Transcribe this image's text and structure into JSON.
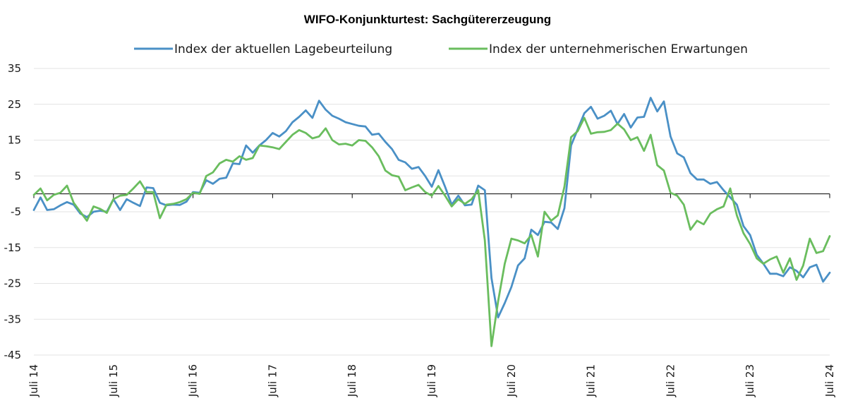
{
  "chart_data": {
    "type": "line",
    "title": "WIFO-Konjunkturtest: Sachgütererzeugung",
    "xlabel": "",
    "ylabel": "",
    "ylim": [
      -45,
      35
    ],
    "yticks": [
      35,
      25,
      15,
      5,
      -5,
      -15,
      -25,
      -35,
      -45
    ],
    "xticks": [
      "Juli 14",
      "Juli 15",
      "Juli 16",
      "Juli 17",
      "Juli 18",
      "Juli 19",
      "Juli 20",
      "Juli 21",
      "Juli 22",
      "Juli 23",
      "Juli 24"
    ],
    "x_range": [
      "2014-07",
      "2024-07"
    ],
    "frequency": "monthly",
    "grid": true,
    "legend_position": "top",
    "series": [
      {
        "name": "Index der aktuellen Lagebeurteilung",
        "color": "#4a90c6",
        "values": [
          -4.5,
          -1,
          -4.5,
          -4.3,
          -3.2,
          -2.3,
          -3.0,
          -5.5,
          -6.5,
          -5.0,
          -4.7,
          -5.0,
          -1.5,
          -4.5,
          -1.5,
          -2.5,
          -3.4,
          1.8,
          1.6,
          -2.5,
          -3.2,
          -3.0,
          -3.1,
          -2.2,
          0.5,
          0.3,
          3.8,
          2.8,
          4.2,
          4.5,
          8.5,
          8.3,
          13.5,
          11.5,
          13.5,
          15.0,
          17.0,
          16.0,
          17.5,
          20.0,
          21.5,
          23.3,
          21.2,
          26.0,
          23.5,
          21.8,
          21.0,
          20.0,
          19.5,
          19.0,
          18.8,
          16.5,
          16.8,
          14.5,
          12.5,
          9.5,
          8.8,
          7.0,
          7.5,
          5.0,
          2.0,
          6.6,
          2.0,
          -3.0,
          -0.5,
          -3.2,
          -3.0,
          2.3,
          1.0,
          -23.5,
          -34.5,
          -30.5,
          -26.0,
          -20.0,
          -18.0,
          -10.0,
          -11.5,
          -7.8,
          -8.0,
          -9.8,
          -4.0,
          13.5,
          18.0,
          22.5,
          24.3,
          21.0,
          21.8,
          23.2,
          19.5,
          22.3,
          18.5,
          21.3,
          21.5,
          26.8,
          23.0,
          25.8,
          16.0,
          11.3,
          10.2,
          5.8,
          4.0,
          4.0,
          2.8,
          3.3,
          1.0,
          -1.0,
          -3.0,
          -9.0,
          -11.5,
          -17.0,
          -19.5,
          -22.3,
          -22.3,
          -23.0,
          -20.5,
          -21.5,
          -23.3,
          -20.5,
          -19.8,
          -24.5,
          -22.0
        ]
      },
      {
        "name": "Index der unternehmerischen Erwartungen",
        "color": "#6abd5e",
        "values": [
          -0.3,
          1.5,
          -1.8,
          -0.3,
          0.3,
          2.3,
          -2.5,
          -5.0,
          -7.5,
          -3.5,
          -4.2,
          -5.3,
          -1.5,
          -0.5,
          -0.3,
          1.5,
          3.5,
          0.5,
          0.5,
          -6.8,
          -3.0,
          -2.8,
          -2.3,
          -1.5,
          0.3,
          0.0,
          5.0,
          6.0,
          8.5,
          9.5,
          9.0,
          10.5,
          9.5,
          10.0,
          13.5,
          13.3,
          13.0,
          12.5,
          14.5,
          16.5,
          17.8,
          17.0,
          15.5,
          16.0,
          18.3,
          15.0,
          13.8,
          14.0,
          13.5,
          15.0,
          14.8,
          13.0,
          10.5,
          6.5,
          5.2,
          4.8,
          1.0,
          1.8,
          2.5,
          0.5,
          -0.5,
          2.2,
          -0.5,
          -3.5,
          -1.5,
          -2.8,
          -1.5,
          1.0,
          -13.0,
          -42.5,
          -30.0,
          -19.5,
          -12.5,
          -13.0,
          -13.8,
          -11.5,
          -17.5,
          -5.0,
          -7.5,
          -6.0,
          2.0,
          15.8,
          17.5,
          21.2,
          16.8,
          17.2,
          17.3,
          17.8,
          19.6,
          18.0,
          15.0,
          15.8,
          12.0,
          16.5,
          8.0,
          6.5,
          0.3,
          -0.5,
          -3.0,
          -10.0,
          -7.5,
          -8.5,
          -5.5,
          -4.3,
          -3.5,
          1.5,
          -6.0,
          -11.0,
          -14.0,
          -18.0,
          -19.5,
          -18.3,
          -17.5,
          -22.0,
          -18.0,
          -24.0,
          -20.0,
          -12.5,
          -16.5,
          -16.0,
          -11.8
        ]
      }
    ]
  }
}
